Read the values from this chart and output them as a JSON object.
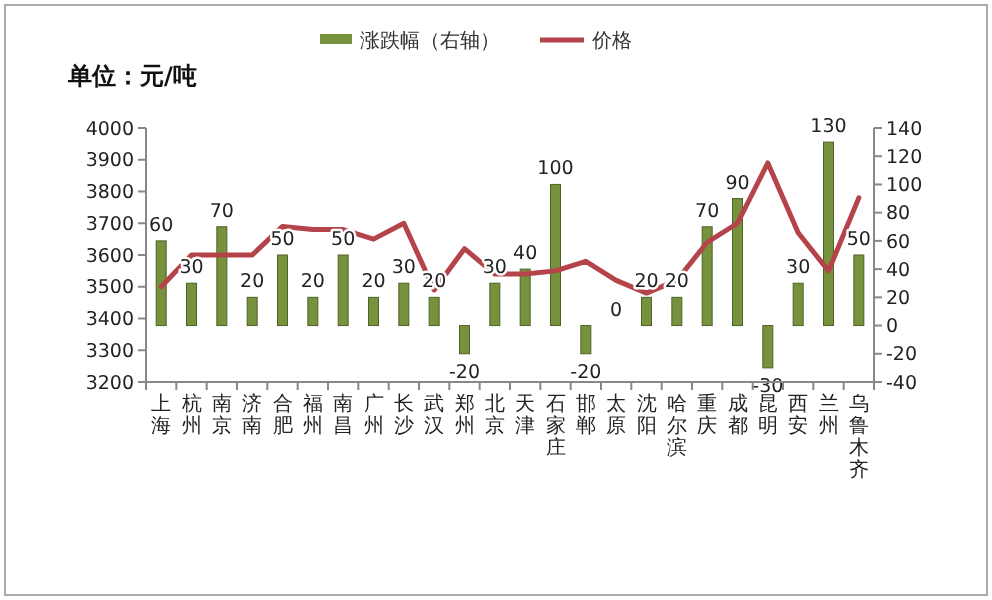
{
  "chart_data": {
    "type": "bar",
    "annotations": [
      "单位：元/吨"
    ],
    "categories": [
      "上海",
      "杭州",
      "南京",
      "济南",
      "合肥",
      "福州",
      "南昌",
      "广州",
      "长沙",
      "武汉",
      "郑州",
      "北京",
      "天津",
      "石家庄",
      "邯郸",
      "太原",
      "沈阳",
      "哈尔滨",
      "重庆",
      "成都",
      "昆明",
      "西安",
      "兰州",
      "乌鲁木齐"
    ],
    "series": [
      {
        "name": "涨跌幅（右轴）",
        "axis": "y2",
        "color": "#76923c",
        "values": [
          60,
          30,
          70,
          20,
          50,
          20,
          50,
          20,
          30,
          20,
          -20,
          30,
          40,
          100,
          -20,
          0,
          20,
          20,
          70,
          90,
          -30,
          30,
          130,
          50
        ],
        "value_labels": [
          "60",
          "30",
          "70",
          "20",
          "50",
          "20",
          "50",
          "20",
          "30",
          "20",
          "-20",
          "30",
          "40",
          "100",
          "-20",
          "0",
          "20",
          "20",
          "70",
          "90",
          "-30",
          "30",
          "130",
          "50"
        ]
      },
      {
        "name": "价格",
        "type": "line",
        "color": "#b5444a",
        "values": [
          3500,
          3600,
          3600,
          3600,
          3690,
          3680,
          3680,
          3650,
          3700,
          3490,
          3620,
          3540,
          3540,
          3550,
          3580,
          3520,
          3480,
          3520,
          3640,
          3700,
          3890,
          3670,
          3550,
          3780
        ]
      }
    ],
    "ylim": [
      3200,
      4000
    ],
    "yticks": [
      3200,
      3300,
      3400,
      3500,
      3600,
      3700,
      3800,
      3900,
      4000
    ],
    "y2lim": [
      -40,
      140
    ],
    "y2ticks": [
      -40,
      -20,
      0,
      20,
      40,
      60,
      80,
      100,
      120,
      140
    ],
    "legend": "top",
    "grid": false
  }
}
